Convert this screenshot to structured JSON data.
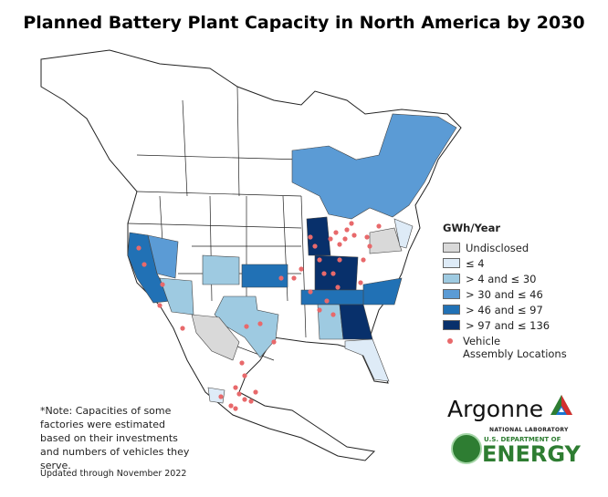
{
  "title": "Planned Battery Plant Capacity in North America by 2030",
  "legend": {
    "title": "GWh/Year",
    "items": [
      {
        "label": "Undisclosed",
        "color": "#d9d9d9"
      },
      {
        "label": "≤ 4",
        "color": "#deebf7"
      },
      {
        "label": "> 4 and ≤ 30",
        "color": "#9ecae1"
      },
      {
        "label": "> 30 and ≤ 46",
        "color": "#5b9bd5"
      },
      {
        "label": "> 46 and ≤ 97",
        "color": "#2171b5"
      },
      {
        "label": "> 97 and ≤ 136",
        "color": "#08306b"
      }
    ],
    "marker_label_1": "Vehicle",
    "marker_label_2": "Assembly Locations",
    "marker_color": "#e8696b"
  },
  "note": "*Note: Capacities of some factories were estimated based on their investments and numbers of vehicles they serve.",
  "updated": "Updated through November 2022",
  "logos": {
    "argonne": "Argonne",
    "argonne_sub": "NATIONAL LABORATORY",
    "doe_sub": "U.S. DEPARTMENT OF",
    "doe_main": "ENERGY"
  }
}
